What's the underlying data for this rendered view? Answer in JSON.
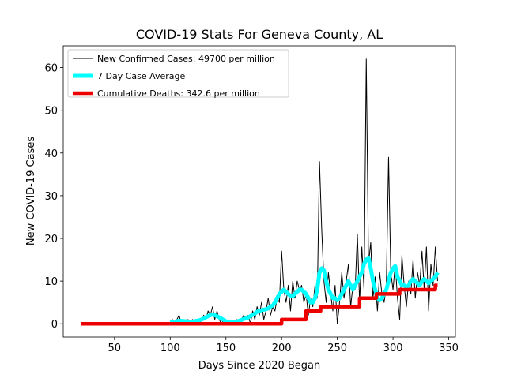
{
  "chart_data": {
    "type": "line",
    "title": "COVID-19 Stats For Geneva County, AL",
    "xlabel": "Days Since 2020 Began",
    "ylabel": "New COVID-19 Cases",
    "xlim": [
      4,
      356
    ],
    "xticks": [
      50,
      100,
      150,
      200,
      250,
      300,
      350
    ],
    "ylim": [
      -3.1,
      65.1
    ],
    "yticks": [
      0,
      10,
      20,
      30,
      40,
      50,
      60
    ],
    "legend": "upper left",
    "series": [
      {
        "name": "New Confirmed Cases: 49700 per million",
        "color": "#000000",
        "width": 1,
        "x": [
          100,
          102,
          104,
          106,
          108,
          110,
          112,
          114,
          116,
          118,
          120,
          122,
          124,
          126,
          128,
          130,
          132,
          134,
          136,
          138,
          140,
          142,
          144,
          146,
          148,
          150,
          152,
          154,
          156,
          158,
          160,
          162,
          164,
          166,
          168,
          170,
          172,
          174,
          176,
          178,
          180,
          182,
          184,
          186,
          188,
          190,
          192,
          194,
          196,
          198,
          200,
          202,
          204,
          206,
          208,
          210,
          212,
          214,
          216,
          218,
          220,
          222,
          224,
          226,
          228,
          230,
          232,
          234,
          236,
          238,
          240,
          242,
          244,
          246,
          248,
          250,
          252,
          254,
          256,
          258,
          260,
          262,
          264,
          266,
          268,
          270,
          272,
          274,
          276,
          278,
          280,
          282,
          284,
          286,
          288,
          290,
          292,
          294,
          296,
          298,
          300,
          302,
          304,
          306,
          308,
          310,
          312,
          314,
          316,
          318,
          320,
          322,
          324,
          326,
          328,
          330,
          332,
          334,
          336,
          338,
          340
        ],
        "values": [
          0,
          1,
          0,
          1,
          2,
          0,
          1,
          0,
          1,
          0,
          1,
          0,
          1,
          1,
          0,
          2,
          1,
          3,
          2,
          4,
          1,
          3,
          1,
          0,
          1,
          0,
          1,
          0,
          0,
          0,
          1,
          0,
          1,
          2,
          1,
          2,
          0,
          3,
          1,
          4,
          2,
          5,
          1,
          3,
          6,
          2,
          4,
          3,
          6,
          5,
          17,
          8,
          5,
          9,
          3,
          10,
          6,
          10,
          8,
          9,
          5,
          7,
          2,
          6,
          4,
          9,
          6,
          38,
          22,
          10,
          5,
          12,
          7,
          3,
          9,
          0,
          5,
          12,
          6,
          10,
          14,
          4,
          9,
          8,
          21,
          5,
          18,
          8,
          62,
          14,
          19,
          6,
          11,
          3,
          12,
          7,
          5,
          9,
          39,
          12,
          8,
          14,
          6,
          1,
          16,
          9,
          4,
          10,
          7,
          15,
          6,
          12,
          9,
          17,
          8,
          18,
          3,
          14,
          9,
          18,
          10
        ]
      },
      {
        "name": "7 Day Case Average",
        "color": "#00ffff",
        "width": 5,
        "x": [
          100,
          102,
          104,
          106,
          108,
          110,
          112,
          114,
          116,
          118,
          120,
          122,
          124,
          126,
          128,
          130,
          132,
          134,
          136,
          138,
          140,
          142,
          144,
          146,
          148,
          150,
          152,
          154,
          156,
          158,
          160,
          162,
          164,
          166,
          168,
          170,
          172,
          174,
          176,
          178,
          180,
          182,
          184,
          186,
          188,
          190,
          192,
          194,
          196,
          198,
          200,
          202,
          204,
          206,
          208,
          210,
          212,
          214,
          216,
          218,
          220,
          222,
          224,
          226,
          228,
          230,
          232,
          234,
          236,
          238,
          240,
          242,
          244,
          246,
          248,
          250,
          252,
          254,
          256,
          258,
          260,
          262,
          264,
          266,
          268,
          270,
          272,
          274,
          276,
          278,
          280,
          282,
          284,
          286,
          288,
          290,
          292,
          294,
          296,
          298,
          300,
          302,
          304,
          306,
          308,
          310,
          312,
          314,
          316,
          318,
          320,
          322,
          324,
          326,
          328,
          330,
          332,
          334,
          336,
          338,
          340
        ],
        "values": [
          0.3,
          0.4,
          0.5,
          0.6,
          0.7,
          0.7,
          0.6,
          0.6,
          0.5,
          0.5,
          0.5,
          0.6,
          0.7,
          0.8,
          1,
          1.2,
          1.5,
          1.8,
          2,
          2.2,
          2,
          1.8,
          1.5,
          1.2,
          0.9,
          0.6,
          0.4,
          0.3,
          0.3,
          0.4,
          0.5,
          0.7,
          0.9,
          1.1,
          1.3,
          1.5,
          1.8,
          2.1,
          2.4,
          2.8,
          3,
          3.2,
          3.3,
          3.4,
          3.6,
          4,
          4.3,
          5,
          6,
          7,
          7.5,
          8,
          7.5,
          7,
          6.5,
          6.5,
          7,
          7.5,
          8,
          8,
          7.5,
          7,
          6,
          5,
          5,
          6,
          8,
          12,
          13,
          12.5,
          10,
          8,
          7,
          6,
          6,
          5.5,
          6,
          7,
          8,
          9,
          10,
          9,
          8,
          9,
          10,
          11,
          12,
          14,
          15,
          15.5,
          13,
          10,
          8,
          6,
          5.5,
          6,
          7,
          8,
          10,
          12,
          13,
          13.5,
          11,
          10,
          9,
          9,
          8.5,
          9,
          10,
          10.5,
          10,
          9.5,
          9,
          10,
          10.5,
          10,
          9.5,
          10,
          10.5,
          11,
          12
        ]
      },
      {
        "name": "Cumulative Deaths: 342.6 per million",
        "color": "#ee0000",
        "width": 4.5,
        "x": [
          20,
          200,
          200,
          222,
          222,
          235,
          235,
          270,
          270,
          285,
          285,
          306,
          306,
          338,
          338,
          340
        ],
        "values": [
          0,
          0,
          1,
          1,
          3,
          3,
          4,
          4,
          6,
          6,
          7,
          7,
          8,
          8,
          9,
          9
        ]
      }
    ]
  }
}
